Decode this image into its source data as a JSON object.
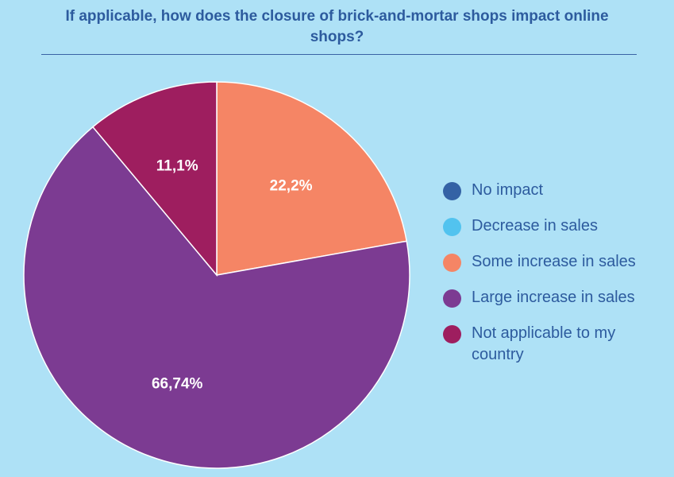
{
  "chart_data": {
    "type": "pie",
    "title_lines": [
      "If applicable, how does the closure of brick-and-mortar shops impact online",
      "shops?"
    ],
    "slices": [
      {
        "name": "No impact",
        "value": 0,
        "label": "",
        "color": "#3462a5"
      },
      {
        "name": "Decrease in sales",
        "value": 0,
        "label": "",
        "color": "#52c3ef"
      },
      {
        "name": "Some increase in sales",
        "value": 22.2,
        "label": "22,2%",
        "color": "#f58565"
      },
      {
        "name": "Large increase in sales",
        "value": 66.74,
        "label": "66,74%",
        "color": "#7c3b92"
      },
      {
        "name": "Not applicable to my country",
        "value": 11.1,
        "label": "11,1%",
        "color": "#9e1e5f"
      }
    ],
    "legend_position": "right"
  }
}
